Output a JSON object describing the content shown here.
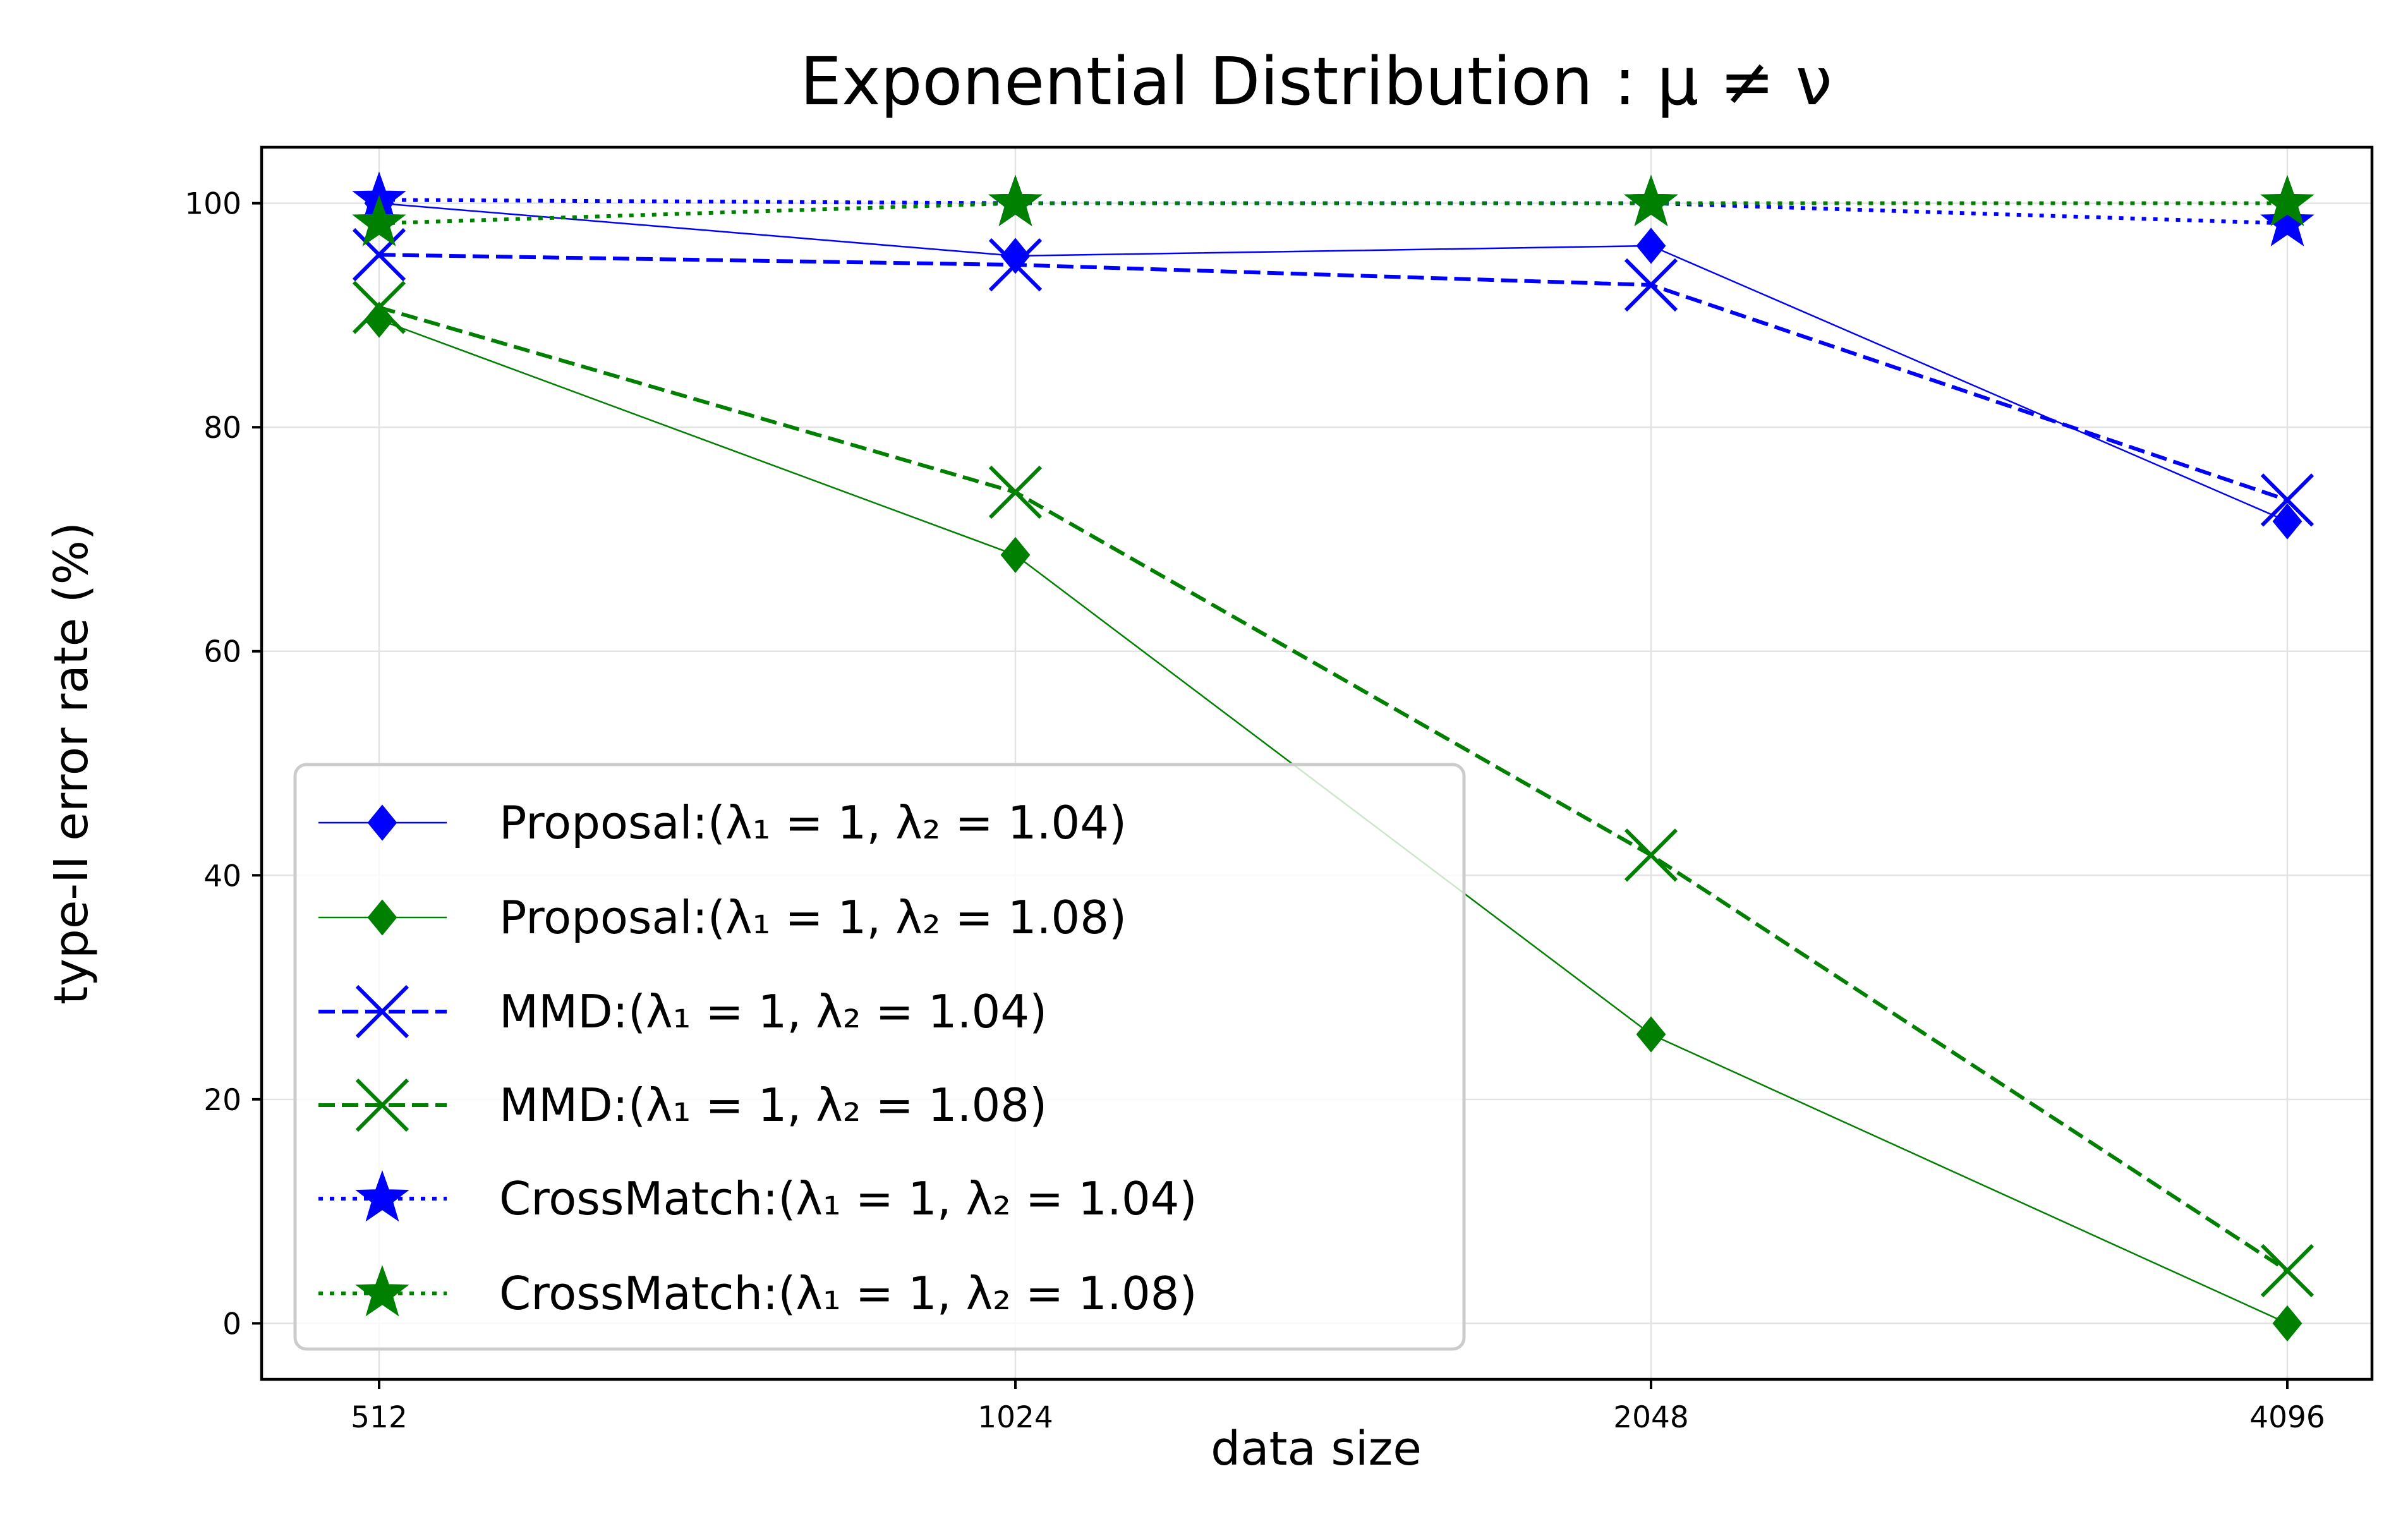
{
  "chart_data": {
    "type": "line",
    "title": "Exponential Distribution : μ ≠ ν",
    "xlabel": "data size",
    "ylabel": "type-II error rate (%)",
    "x_categories": [
      "512",
      "1024",
      "2048",
      "4096"
    ],
    "x": [
      512,
      1024,
      2048,
      4096
    ],
    "y_ticks": [
      "0",
      "20",
      "40",
      "60",
      "80",
      "100"
    ],
    "ylim": [
      -5,
      105
    ],
    "grid": true,
    "legend_position": "lower-left",
    "series": [
      {
        "name": "Proposal:(λ₁ = 1, λ₂ = 1.04)",
        "color": "#0000ff",
        "marker": "diamond",
        "linestyle": "solid",
        "values": [
          100,
          95.3,
          96.2,
          71.6
        ]
      },
      {
        "name": "Proposal:(λ₁ = 1, λ₂ = 1.08)",
        "color": "#008000",
        "marker": "diamond",
        "linestyle": "solid",
        "values": [
          89.6,
          68.6,
          25.8,
          0
        ]
      },
      {
        "name": "MMD:(λ₁ = 1, λ₂ = 1.04)",
        "color": "#0000ff",
        "marker": "x",
        "linestyle": "dashed",
        "values": [
          95.4,
          94.5,
          92.7,
          73.5
        ]
      },
      {
        "name": "MMD:(λ₁ = 1, λ₂ = 1.08)",
        "color": "#008000",
        "marker": "x",
        "linestyle": "dashed",
        "values": [
          90.7,
          74.2,
          41.8,
          4.7
        ]
      },
      {
        "name": "CrossMatch:(λ₁ = 1, λ₂ = 1.04)",
        "color": "#0000ff",
        "marker": "star",
        "linestyle": "dotted",
        "values": [
          100.3,
          100,
          100,
          98.2
        ]
      },
      {
        "name": "CrossMatch:(λ₁ = 1, λ₂ = 1.08)",
        "color": "#008000",
        "marker": "star",
        "linestyle": "dotted",
        "values": [
          98.2,
          100,
          100,
          100
        ]
      }
    ]
  }
}
